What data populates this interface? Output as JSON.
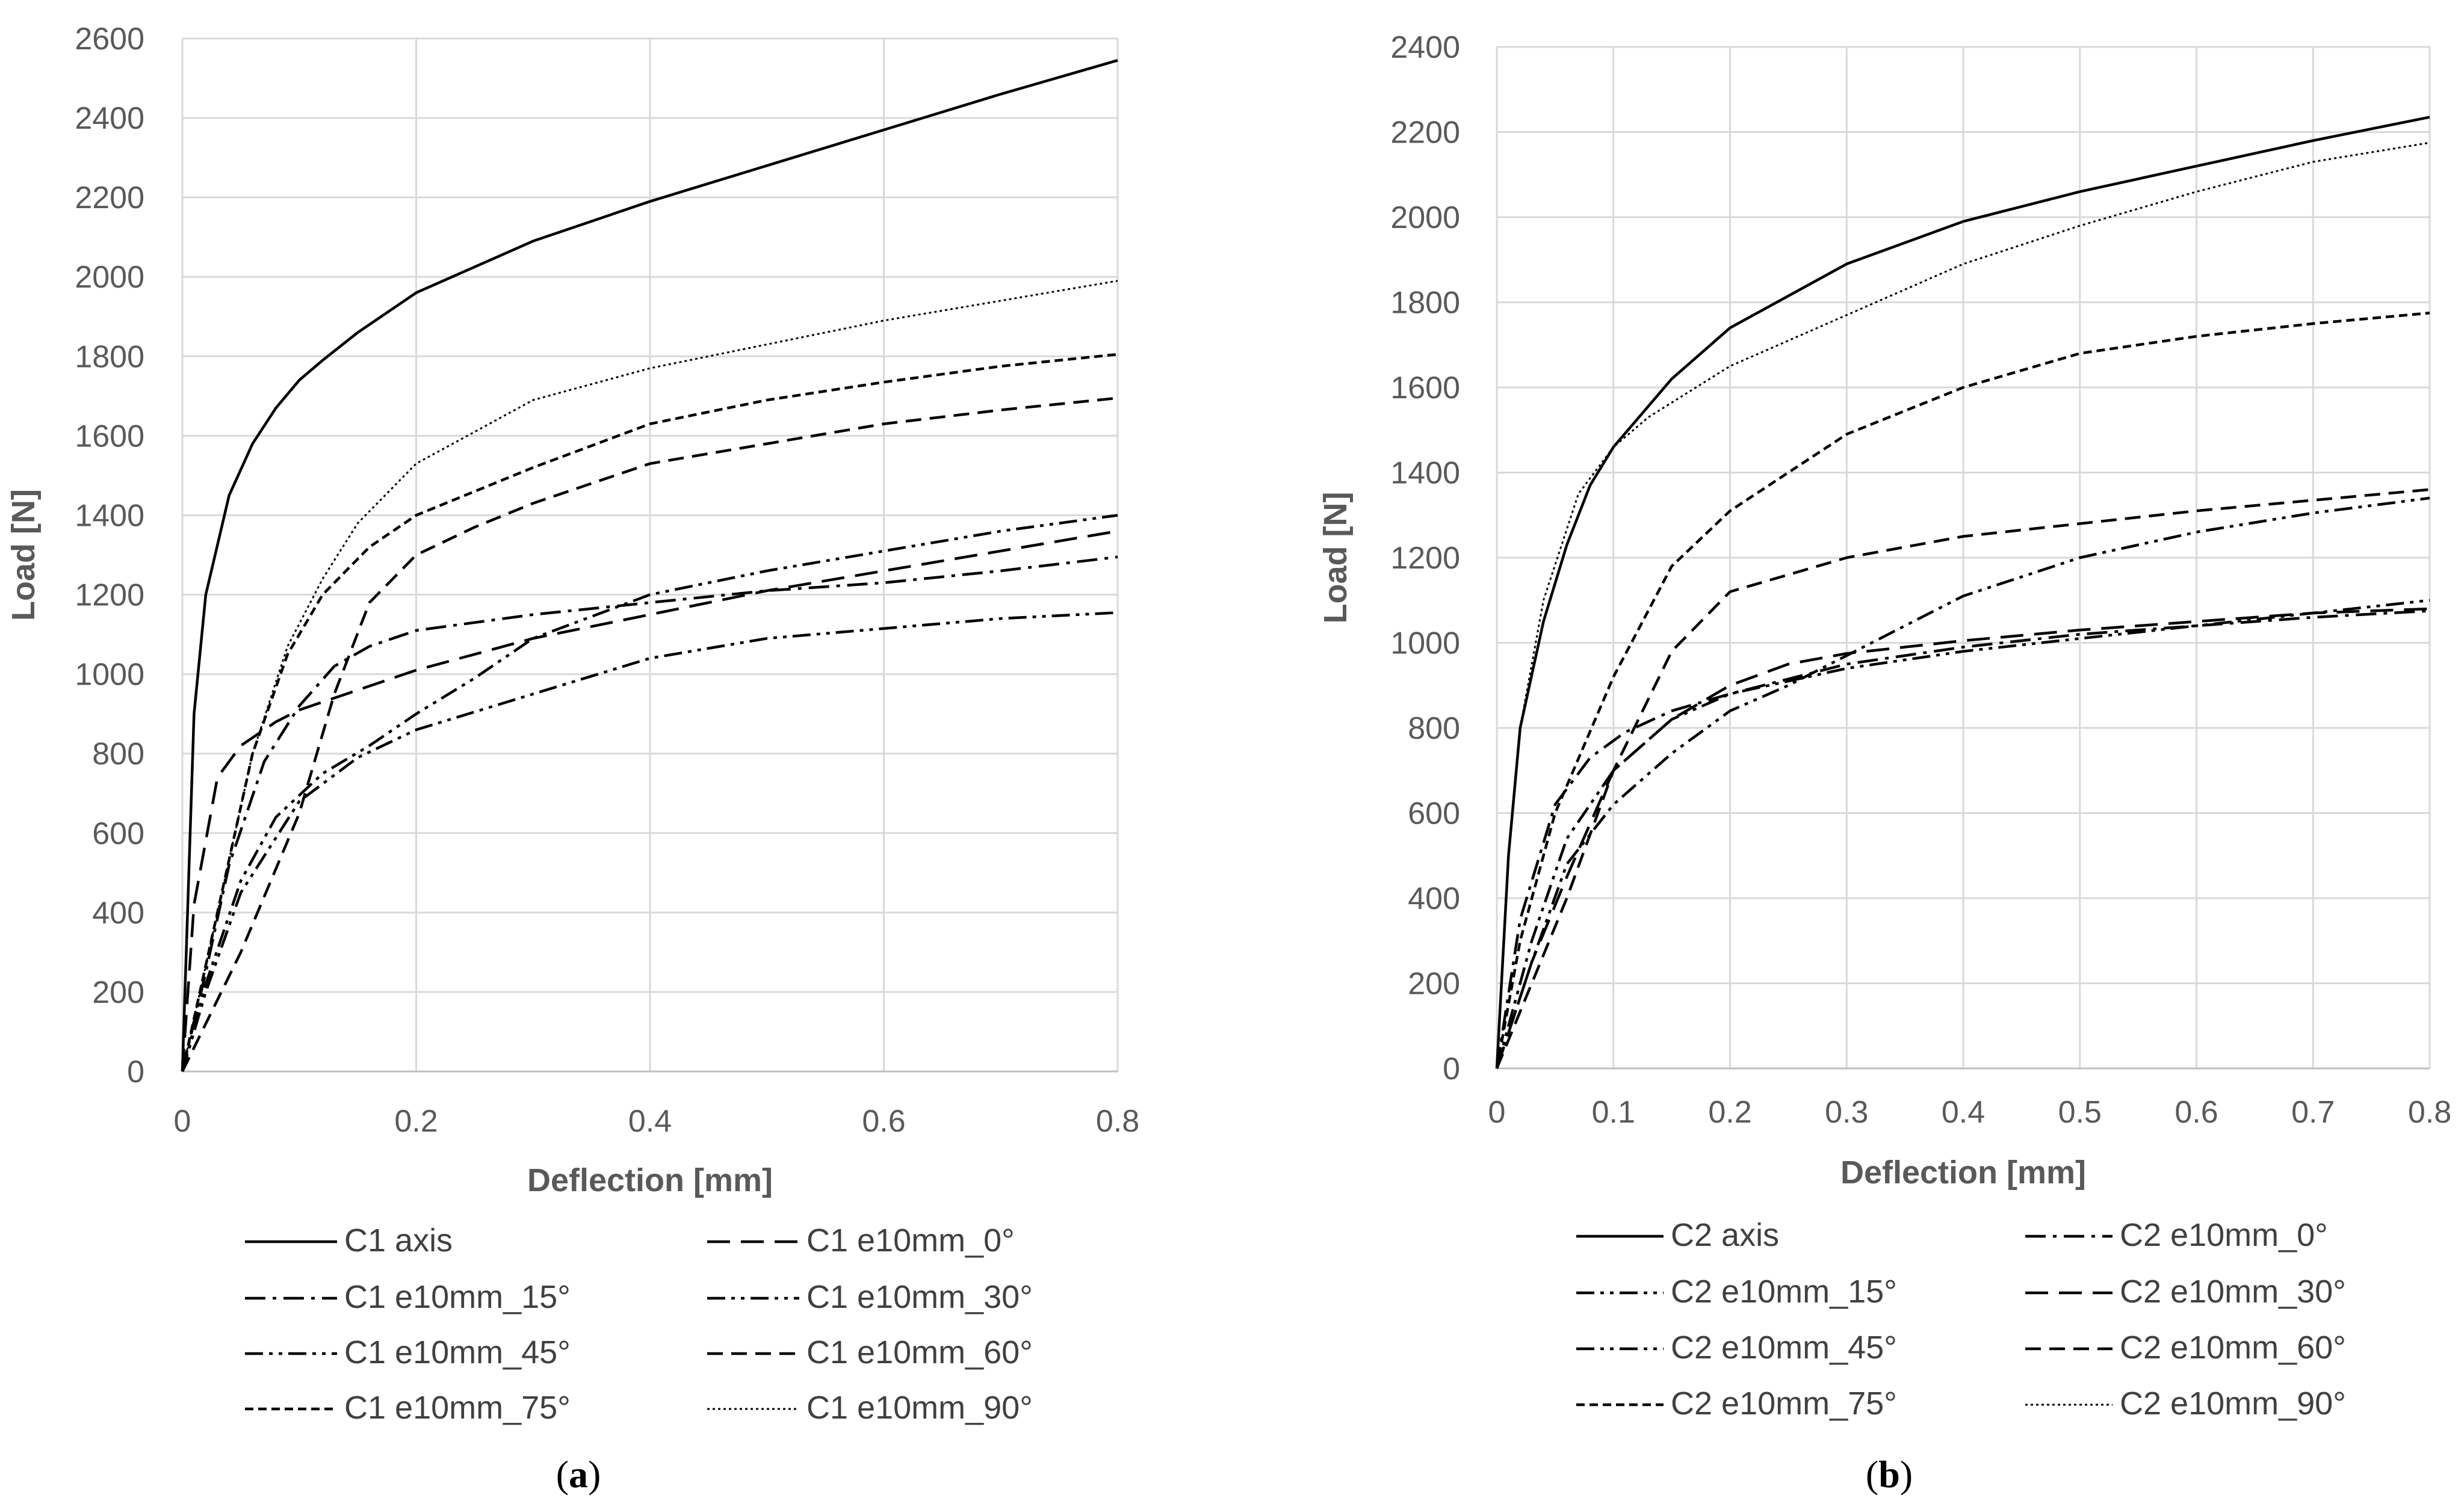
{
  "chart_data": [
    {
      "panel_label": "a",
      "type": "line",
      "xlabel": "Deflection [mm]",
      "ylabel": "Load [N]",
      "xlim": [
        0,
        0.8
      ],
      "ylim": [
        0,
        2600
      ],
      "x_ticks": [
        "0",
        "0.2",
        "0.4",
        "0.6",
        "0.8"
      ],
      "y_ticks": [
        "0",
        "200",
        "400",
        "600",
        "800",
        "1000",
        "1200",
        "1400",
        "1600",
        "1800",
        "2000",
        "2200",
        "2400",
        "2600"
      ],
      "grid": true,
      "legend_position": "bottom",
      "series": [
        {
          "name": "C1 axis",
          "style": "solid",
          "x": [
            0,
            0.01,
            0.02,
            0.04,
            0.06,
            0.08,
            0.1,
            0.12,
            0.15,
            0.2,
            0.3,
            0.4,
            0.5,
            0.6,
            0.7,
            0.8
          ],
          "y": [
            0,
            900,
            1200,
            1450,
            1580,
            1670,
            1740,
            1790,
            1860,
            1960,
            2090,
            2190,
            2280,
            2370,
            2460,
            2545
          ]
        },
        {
          "name": "C1 e10mm_0°",
          "style": "longdash",
          "x": [
            0,
            0.01,
            0.03,
            0.05,
            0.08,
            0.1,
            0.15,
            0.2,
            0.3,
            0.4,
            0.5,
            0.6,
            0.7,
            0.8
          ],
          "y": [
            0,
            420,
            740,
            820,
            880,
            910,
            960,
            1010,
            1090,
            1150,
            1210,
            1260,
            1310,
            1360
          ]
        },
        {
          "name": "C1 e10mm_15°",
          "style": "dashdot",
          "x": [
            0,
            0.02,
            0.04,
            0.07,
            0.1,
            0.13,
            0.16,
            0.2,
            0.3,
            0.4,
            0.5,
            0.6,
            0.7,
            0.8
          ],
          "y": [
            0,
            250,
            520,
            780,
            920,
            1020,
            1070,
            1110,
            1150,
            1180,
            1210,
            1230,
            1260,
            1295
          ]
        },
        {
          "name": "C1 e10mm_30°",
          "style": "dashdotdot",
          "x": [
            0,
            0.02,
            0.05,
            0.1,
            0.15,
            0.2,
            0.3,
            0.4,
            0.5,
            0.6,
            0.7,
            0.8
          ],
          "y": [
            0,
            200,
            450,
            680,
            790,
            860,
            950,
            1040,
            1090,
            1115,
            1140,
            1155
          ]
        },
        {
          "name": "C1 e10mm_45°",
          "style": "dashdotdot",
          "x": [
            0,
            0.02,
            0.05,
            0.08,
            0.12,
            0.16,
            0.2,
            0.25,
            0.3,
            0.4,
            0.5,
            0.6,
            0.7,
            0.8
          ],
          "y": [
            0,
            220,
            480,
            640,
            750,
            820,
            900,
            990,
            1090,
            1200,
            1260,
            1310,
            1360,
            1400
          ]
        },
        {
          "name": "C1 e10mm_60°",
          "style": "dash",
          "x": [
            0,
            0.05,
            0.1,
            0.13,
            0.16,
            0.2,
            0.25,
            0.3,
            0.4,
            0.5,
            0.6,
            0.7,
            0.8
          ],
          "y": [
            0,
            300,
            650,
            950,
            1180,
            1300,
            1370,
            1430,
            1530,
            1580,
            1630,
            1665,
            1695
          ]
        },
        {
          "name": "C1 e10mm_75°",
          "style": "shortdash",
          "x": [
            0,
            0.03,
            0.06,
            0.09,
            0.12,
            0.16,
            0.2,
            0.3,
            0.4,
            0.5,
            0.6,
            0.7,
            0.8
          ],
          "y": [
            0,
            400,
            800,
            1050,
            1200,
            1320,
            1400,
            1520,
            1630,
            1690,
            1735,
            1775,
            1805
          ]
        },
        {
          "name": "C1 e10mm_90°",
          "style": "dotted",
          "x": [
            0,
            0.03,
            0.06,
            0.09,
            0.12,
            0.15,
            0.2,
            0.3,
            0.4,
            0.5,
            0.6,
            0.7,
            0.8
          ],
          "y": [
            0,
            400,
            800,
            1070,
            1240,
            1380,
            1530,
            1690,
            1770,
            1830,
            1890,
            1940,
            1990
          ]
        }
      ]
    },
    {
      "panel_label": "b",
      "type": "line",
      "xlabel": "Deflection [mm]",
      "ylabel": "Load [N]",
      "xlim": [
        0,
        0.8
      ],
      "ylim": [
        0,
        2400
      ],
      "x_ticks": [
        "0",
        "0.1",
        "0.2",
        "0.3",
        "0.4",
        "0.5",
        "0.6",
        "0.7",
        "0.8"
      ],
      "y_ticks": [
        "0",
        "200",
        "400",
        "600",
        "800",
        "1000",
        "1200",
        "1400",
        "1600",
        "1800",
        "2000",
        "2200",
        "2400"
      ],
      "grid": true,
      "legend_position": "bottom",
      "series": [
        {
          "name": "C2 axis",
          "style": "solid",
          "x": [
            0,
            0.01,
            0.02,
            0.04,
            0.06,
            0.08,
            0.1,
            0.15,
            0.2,
            0.3,
            0.4,
            0.5,
            0.6,
            0.7,
            0.8
          ],
          "y": [
            0,
            500,
            800,
            1050,
            1230,
            1370,
            1460,
            1620,
            1740,
            1890,
            1990,
            2060,
            2120,
            2180,
            2235
          ]
        },
        {
          "name": "C2 e10mm_0°",
          "style": "dashdot",
          "x": [
            0,
            0.02,
            0.05,
            0.08,
            0.11,
            0.15,
            0.2,
            0.3,
            0.4,
            0.5,
            0.6,
            0.7,
            0.8
          ],
          "y": [
            0,
            350,
            620,
            730,
            790,
            840,
            880,
            950,
            990,
            1020,
            1040,
            1060,
            1075
          ]
        },
        {
          "name": "C2 e10mm_15°",
          "style": "dashdotdot",
          "x": [
            0,
            0.03,
            0.06,
            0.1,
            0.15,
            0.2,
            0.3,
            0.4,
            0.5,
            0.6,
            0.7,
            0.8
          ],
          "y": [
            0,
            300,
            540,
            700,
            820,
            880,
            940,
            980,
            1010,
            1040,
            1070,
            1100
          ]
        },
        {
          "name": "C2 e10mm_30°",
          "style": "longdash",
          "x": [
            0,
            0.03,
            0.06,
            0.1,
            0.15,
            0.2,
            0.25,
            0.3,
            0.4,
            0.5,
            0.6,
            0.7,
            0.8
          ],
          "y": [
            0,
            250,
            450,
            700,
            820,
            900,
            950,
            975,
            1005,
            1030,
            1050,
            1070,
            1080
          ]
        },
        {
          "name": "C2 e10mm_45°",
          "style": "dashdotdot",
          "x": [
            0,
            0.03,
            0.06,
            0.1,
            0.15,
            0.2,
            0.25,
            0.3,
            0.35,
            0.4,
            0.5,
            0.6,
            0.7,
            0.8
          ],
          "y": [
            0,
            250,
            480,
            620,
            740,
            840,
            900,
            970,
            1040,
            1110,
            1200,
            1260,
            1305,
            1340
          ]
        },
        {
          "name": "C2 e10mm_60°",
          "style": "dash",
          "x": [
            0,
            0.03,
            0.06,
            0.1,
            0.15,
            0.2,
            0.3,
            0.4,
            0.5,
            0.6,
            0.7,
            0.8
          ],
          "y": [
            0,
            200,
            400,
            700,
            980,
            1120,
            1200,
            1250,
            1280,
            1310,
            1335,
            1360
          ]
        },
        {
          "name": "C2 e10mm_75°",
          "style": "shortdash",
          "x": [
            0,
            0.02,
            0.05,
            0.1,
            0.15,
            0.2,
            0.3,
            0.4,
            0.5,
            0.6,
            0.7,
            0.8
          ],
          "y": [
            0,
            300,
            600,
            920,
            1180,
            1310,
            1490,
            1600,
            1680,
            1720,
            1750,
            1775
          ]
        },
        {
          "name": "C2 e10mm_90°",
          "style": "dotted",
          "x": [
            0,
            0.01,
            0.02,
            0.04,
            0.07,
            0.1,
            0.13,
            0.2,
            0.3,
            0.4,
            0.5,
            0.6,
            0.7,
            0.8
          ],
          "y": [
            0,
            500,
            800,
            1100,
            1350,
            1460,
            1530,
            1650,
            1770,
            1890,
            1980,
            2060,
            2130,
            2175
          ]
        }
      ]
    }
  ]
}
